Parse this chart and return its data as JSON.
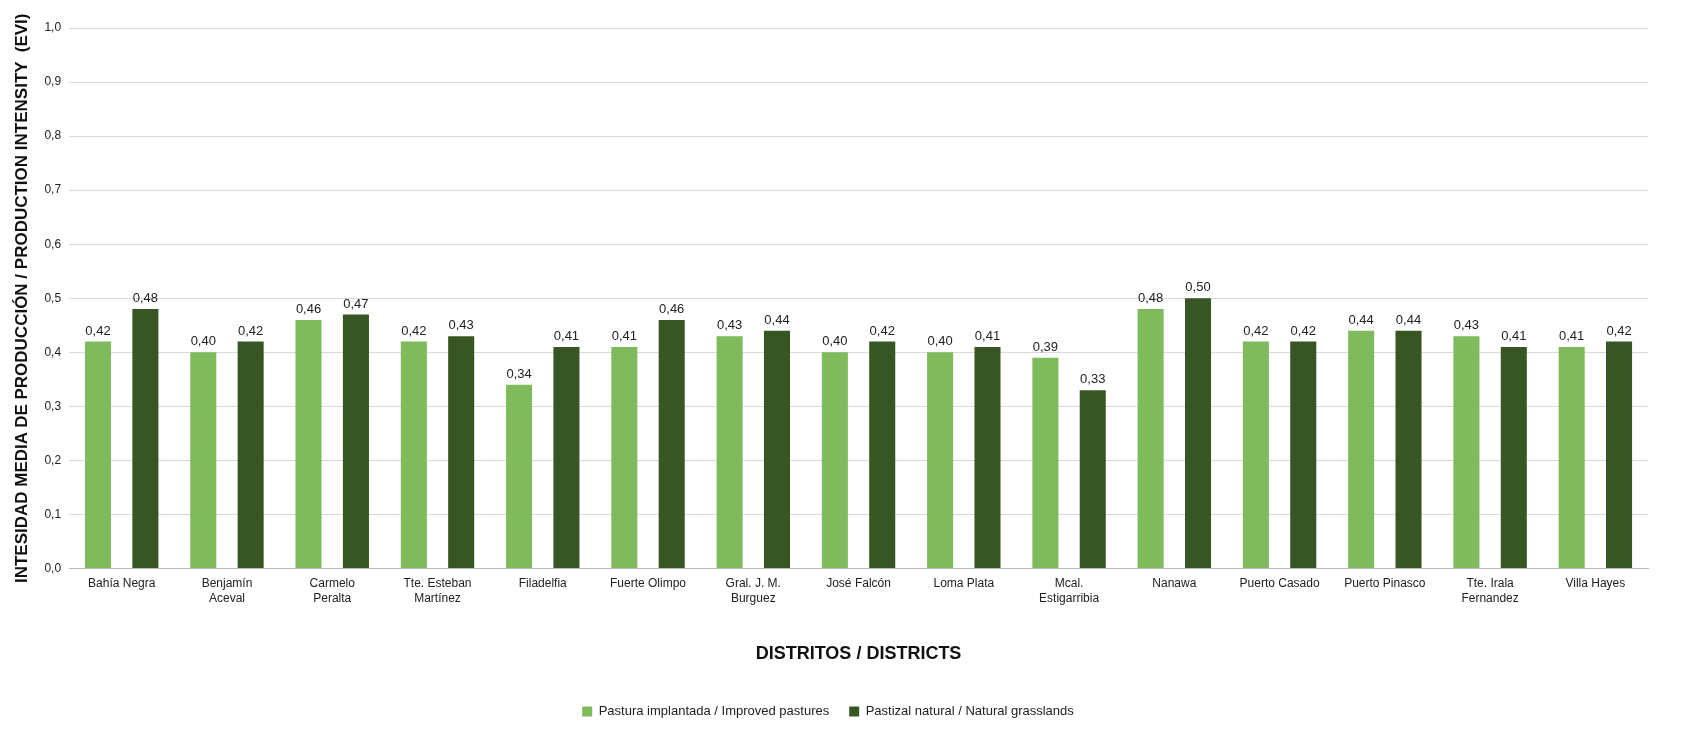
{
  "chart_data": {
    "type": "bar",
    "xlabel": "DISTRITOS / DISTRICTS",
    "ylabel": "INTESIDAD MEDIA DE PRODUCCIÓN / PRODUCTION INTENSITY  (EVI)",
    "categories": [
      "Bahía Negra",
      "Benjamín Aceval",
      "Carmelo Peralta",
      "Tte. Esteban Martínez",
      "Filadelfia",
      "Fuerte Olimpo",
      "Gral. J. M. Burguez",
      "José Falcón",
      "Loma Plata",
      "Mcal. Estigarribia",
      "Nanawa",
      "Puerto Casado",
      "Puerto Pinasco",
      "Tte. Irala Fernandez",
      "Villa Hayes"
    ],
    "series": [
      {
        "name": "Pastura implantada / Improved pastures",
        "color": "#7fba5c",
        "values": [
          0.42,
          0.4,
          0.46,
          0.42,
          0.34,
          0.41,
          0.43,
          0.4,
          0.4,
          0.39,
          0.48,
          0.42,
          0.44,
          0.43,
          0.41
        ],
        "value_labels": [
          "0,42",
          "0,40",
          "0,46",
          "0,42",
          "0,34",
          "0,41",
          "0,43",
          "0,40",
          "0,40",
          "0,39",
          "0,48",
          "0,42",
          "0,44",
          "0,43",
          "0,41"
        ]
      },
      {
        "name": "Pastizal natural / Natural grasslands",
        "color": "#375623",
        "values": [
          0.48,
          0.42,
          0.47,
          0.43,
          0.41,
          0.46,
          0.44,
          0.42,
          0.41,
          0.33,
          0.5,
          0.42,
          0.44,
          0.41,
          0.42
        ],
        "value_labels": [
          "0,48",
          "0,42",
          "0,47",
          "0,43",
          "0,41",
          "0,46",
          "0,44",
          "0,42",
          "0,41",
          "0,33",
          "0,50",
          "0,42",
          "0,44",
          "0,41",
          "0,42"
        ]
      }
    ],
    "ylim": [
      0,
      1
    ],
    "yticks": [
      {
        "value": 0,
        "label": "0,0"
      },
      {
        "value": 0.1,
        "label": "0,1"
      },
      {
        "value": 0.2,
        "label": "0,2"
      },
      {
        "value": 0.3,
        "label": "0,3"
      },
      {
        "value": 0.4,
        "label": "0,4"
      },
      {
        "value": 0.5,
        "label": "0,5"
      },
      {
        "value": 0.6,
        "label": "0,6"
      },
      {
        "value": 0.7,
        "label": "0,7"
      },
      {
        "value": 0.8,
        "label": "0,8"
      },
      {
        "value": 0.9,
        "label": "0,9"
      },
      {
        "value": 1,
        "label": "1,0"
      }
    ],
    "grid": "y",
    "legend": "bottom"
  }
}
